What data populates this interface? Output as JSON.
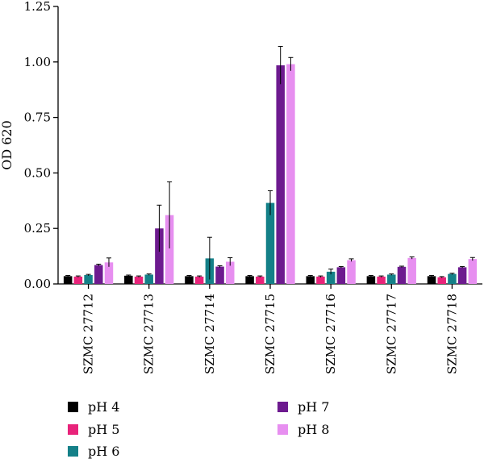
{
  "chart_data": {
    "type": "bar",
    "title": "",
    "xlabel": "",
    "ylabel": "OD 620",
    "ylim": [
      0,
      1.25
    ],
    "yticks": [
      "0.00",
      "0.25",
      "0.50",
      "0.75",
      "1.00",
      "1.25"
    ],
    "grid": false,
    "legend_position": "bottom",
    "categories": [
      "SZMC 27712",
      "SZMC 27713",
      "SZMC 27714",
      "SZMC 27715",
      "SZMC 27716",
      "SZMC 27717",
      "SZMC 27718"
    ],
    "series": [
      {
        "name": "pH 4",
        "color": "#000000",
        "values": [
          0.035,
          0.037,
          0.035,
          0.035,
          0.035,
          0.035,
          0.035
        ],
        "errors": [
          0.003,
          0.003,
          0.003,
          0.003,
          0.003,
          0.003,
          0.003
        ]
      },
      {
        "name": "pH 5",
        "color": "#e8237a",
        "values": [
          0.033,
          0.033,
          0.033,
          0.033,
          0.033,
          0.033,
          0.03
        ],
        "errors": [
          0.003,
          0.003,
          0.003,
          0.003,
          0.003,
          0.003,
          0.003
        ]
      },
      {
        "name": "pH 6",
        "color": "#148088",
        "values": [
          0.04,
          0.042,
          0.115,
          0.365,
          0.055,
          0.042,
          0.045
        ],
        "errors": [
          0.003,
          0.003,
          0.095,
          0.055,
          0.012,
          0.003,
          0.003
        ]
      },
      {
        "name": "pH 7",
        "color": "#6d1a8f",
        "values": [
          0.085,
          0.25,
          0.078,
          0.985,
          0.075,
          0.077,
          0.075
        ],
        "errors": [
          0.004,
          0.105,
          0.004,
          0.085,
          0.003,
          0.003,
          0.003
        ]
      },
      {
        "name": "pH 8",
        "color": "#e78ff0",
        "values": [
          0.097,
          0.31,
          0.1,
          0.99,
          0.107,
          0.117,
          0.112
        ],
        "errors": [
          0.02,
          0.15,
          0.018,
          0.03,
          0.006,
          0.005,
          0.007
        ]
      }
    ]
  }
}
